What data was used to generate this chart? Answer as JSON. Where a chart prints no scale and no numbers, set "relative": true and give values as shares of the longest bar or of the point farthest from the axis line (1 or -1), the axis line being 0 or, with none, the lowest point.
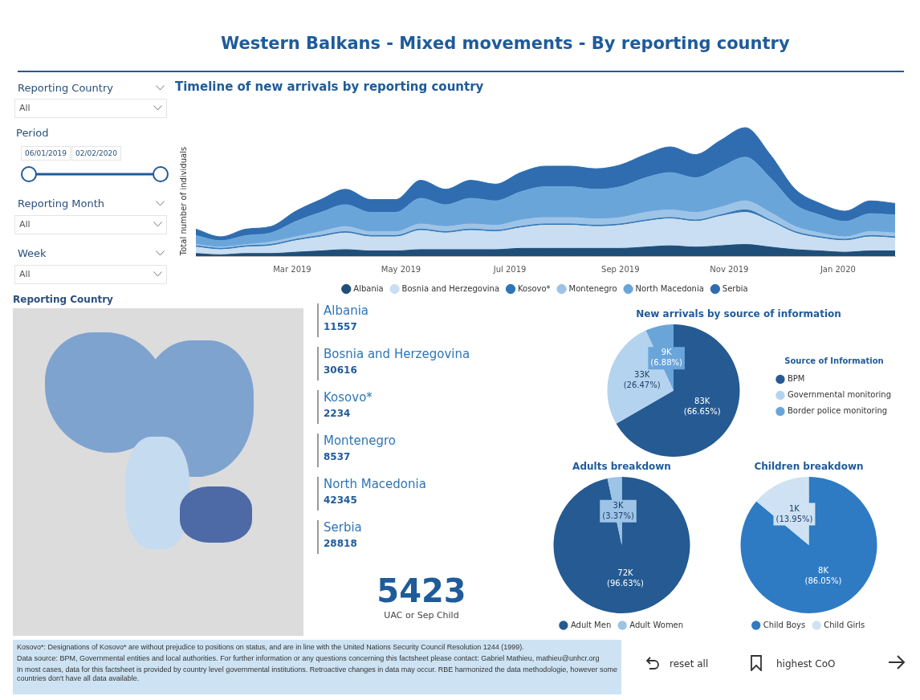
{
  "chart_data": [
    {
      "type": "area",
      "stacked": true,
      "relative": true,
      "title": "Timeline of new arrivals by reporting country",
      "ylabel": "Total number of individuals",
      "legend": "bottom",
      "x": [
        "2019-01-06",
        "2019-01-20",
        "2019-02-03",
        "2019-02-17",
        "2019-03-03",
        "2019-03-17",
        "2019-03-31",
        "2019-04-14",
        "2019-04-28",
        "2019-05-12",
        "2019-05-26",
        "2019-06-09",
        "2019-06-23",
        "2019-07-07",
        "2019-07-21",
        "2019-08-04",
        "2019-08-18",
        "2019-09-01",
        "2019-09-15",
        "2019-09-29",
        "2019-10-13",
        "2019-10-27",
        "2019-11-10",
        "2019-11-24",
        "2019-12-08",
        "2019-12-22",
        "2020-01-05",
        "2020-01-19",
        "2020-02-02"
      ],
      "xlim": [
        "2019-01-06",
        "2020-02-02"
      ],
      "xticks": [
        {
          "value": "2019-03-01",
          "label": "Mar 2019"
        },
        {
          "value": "2019-05-01",
          "label": "May 2019"
        },
        {
          "value": "2019-07-01",
          "label": "Jul 2019"
        },
        {
          "value": "2019-09-01",
          "label": "Sep 2019"
        },
        {
          "value": "2019-11-01",
          "label": "Nov 2019"
        },
        {
          "value": "2020-01-01",
          "label": "Jan 2020"
        }
      ],
      "series": [
        {
          "name": "Albania",
          "color": "#1f4e79",
          "values": [
            0.02,
            0.01,
            0.02,
            0.02,
            0.03,
            0.04,
            0.05,
            0.04,
            0.04,
            0.05,
            0.05,
            0.05,
            0.05,
            0.06,
            0.06,
            0.06,
            0.06,
            0.06,
            0.07,
            0.08,
            0.07,
            0.08,
            0.09,
            0.07,
            0.05,
            0.04,
            0.03,
            0.04,
            0.04
          ]
        },
        {
          "name": "Bosnia and Herzegovina",
          "color": "#c9def2",
          "values": [
            0.05,
            0.04,
            0.05,
            0.06,
            0.09,
            0.11,
            0.13,
            0.11,
            0.11,
            0.15,
            0.13,
            0.15,
            0.14,
            0.16,
            0.18,
            0.18,
            0.17,
            0.18,
            0.2,
            0.21,
            0.2,
            0.23,
            0.25,
            0.2,
            0.13,
            0.1,
            0.09,
            0.11,
            0.1
          ]
        },
        {
          "name": "Kosovo*",
          "color": "#2e75b6",
          "values": [
            0.01,
            0.01,
            0.01,
            0.01,
            0.01,
            0.01,
            0.01,
            0.01,
            0.01,
            0.01,
            0.01,
            0.01,
            0.01,
            0.01,
            0.01,
            0.01,
            0.01,
            0.01,
            0.01,
            0.01,
            0.01,
            0.01,
            0.02,
            0.01,
            0.01,
            0.01,
            0.01,
            0.01,
            0.01
          ]
        },
        {
          "name": "Montenegro",
          "color": "#9dc3e6",
          "values": [
            0.01,
            0.01,
            0.01,
            0.02,
            0.02,
            0.03,
            0.04,
            0.03,
            0.03,
            0.04,
            0.04,
            0.04,
            0.04,
            0.05,
            0.05,
            0.05,
            0.05,
            0.05,
            0.06,
            0.06,
            0.06,
            0.06,
            0.07,
            0.06,
            0.04,
            0.03,
            0.02,
            0.03,
            0.03
          ]
        },
        {
          "name": "North Macedonia",
          "color": "#6aa5da",
          "values": [
            0.07,
            0.05,
            0.07,
            0.07,
            0.12,
            0.15,
            0.17,
            0.15,
            0.15,
            0.2,
            0.17,
            0.2,
            0.19,
            0.22,
            0.24,
            0.24,
            0.23,
            0.24,
            0.27,
            0.29,
            0.27,
            0.31,
            0.34,
            0.27,
            0.17,
            0.14,
            0.12,
            0.14,
            0.14
          ]
        },
        {
          "name": "Serbia",
          "color": "#2f6db0",
          "values": [
            0.05,
            0.03,
            0.05,
            0.05,
            0.08,
            0.1,
            0.12,
            0.1,
            0.1,
            0.14,
            0.12,
            0.14,
            0.13,
            0.15,
            0.16,
            0.16,
            0.16,
            0.17,
            0.18,
            0.2,
            0.18,
            0.21,
            0.23,
            0.18,
            0.12,
            0.09,
            0.08,
            0.1,
            0.09
          ]
        }
      ]
    },
    {
      "type": "pie",
      "title": "New arrivals by source of information",
      "legend": "right",
      "legend_title": "Source of Information",
      "categories": [
        "BPM",
        "Governmental monitoring",
        "Border police monitoring"
      ],
      "values": [
        66.65,
        26.47,
        6.88
      ],
      "colors": [
        "#255a93",
        "#b4d3ef",
        "#6aa5da"
      ],
      "value_labels": [
        "83K (66.65%)",
        "33K (26.47%)",
        "9K (6.88%)"
      ]
    },
    {
      "type": "pie",
      "title": "Adults breakdown",
      "legend": "bottom",
      "categories": [
        "Adult Men",
        "Adult Women"
      ],
      "values": [
        96.63,
        3.37
      ],
      "colors": [
        "#255a93",
        "#9dc3e6"
      ],
      "value_labels": [
        "72K (96.63%)",
        "3K (3.37%)"
      ]
    },
    {
      "type": "pie",
      "title": "Children breakdown",
      "legend": "bottom",
      "categories": [
        "Child Boys",
        "Child Girls"
      ],
      "values": [
        86.05,
        13.95
      ],
      "colors": [
        "#2e7bc4",
        "#cfe2f3"
      ],
      "value_labels": [
        "8K (86.05%)",
        "1K (13.95%)"
      ]
    },
    {
      "type": "other",
      "data_labels": true,
      "categories": [
        "Albania",
        "Bosnia and Herzegovina",
        "Kosovo*",
        "Montenegro",
        "North Macedonia",
        "Serbia"
      ],
      "values": [
        11557,
        30616,
        2234,
        8537,
        42345,
        28818
      ]
    },
    {
      "type": "other",
      "data_labels": true,
      "categories": [
        "UAC or Sep Child"
      ],
      "values": [
        5423
      ]
    },
    {
      "type": "other",
      "title": "Western Balkans - Mixed movements - By reporting country",
      "annotations": [
        "Reporting Country",
        "All",
        "Period",
        "06/01/2019",
        "02/02/2020",
        "Reporting Month",
        "All",
        "Week",
        "All",
        "Reporting Country",
        "Kosovo*: Designations of Kosovo* are without prejudice to positions on status, and are in line with the United Nations Security Council Resolution 1244 (1999).",
        "Data source: BPM, Governmental entities and local authorities. For further information or any questions concerning this factsheet please contact: Gabriel Mathieu, mathieu@unhcr.org",
        "In most cases, data for this factsheet is provided by country level governmental institutions. Retroactive changes in data may occur.  RBE harmonized the data methodologie, however some countries don't have all data available.",
        "reset all",
        "highest CoO"
      ]
    }
  ]
}
